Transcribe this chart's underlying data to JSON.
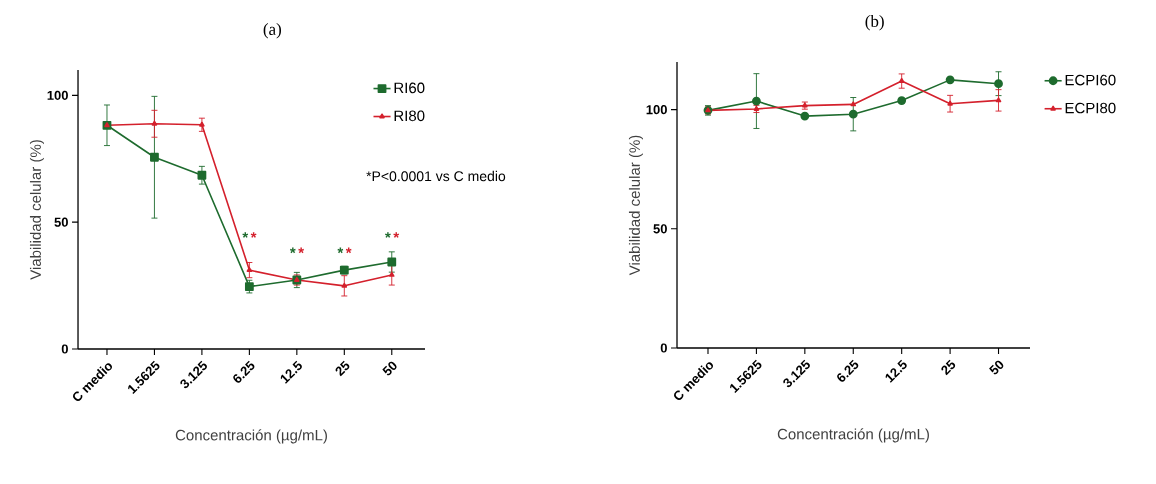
{
  "chart_data": [
    {
      "type": "line",
      "title": "(a)",
      "xlabel": "Concentración (µg/mL)",
      "ylabel": "Viabilidad celular (%)",
      "categories": [
        "C medio",
        "1.5625",
        "3.125",
        "6.25",
        "12.5",
        "25",
        "50"
      ],
      "series": [
        {
          "name": "RI60",
          "color": "#1e6b2e",
          "marker": "square",
          "values": [
            88.2,
            75.6,
            68.5,
            24.6,
            27.2,
            31.1,
            34.3
          ],
          "errors": [
            8,
            24,
            3.5,
            2.5,
            3,
            1.5,
            4
          ]
        },
        {
          "name": "RI80",
          "color": "#d4202c",
          "marker": "triangle",
          "values": [
            88.2,
            88.8,
            88.4,
            31.1,
            27.2,
            24.9,
            29.2
          ],
          "errors": [
            1,
            5.3,
            2.6,
            3,
            2,
            4,
            4
          ]
        }
      ],
      "ylim": [
        0,
        110
      ],
      "yticks": [
        0,
        50,
        100
      ],
      "legend": "top right",
      "line_style": "solid",
      "annotations": [
        "*P<0.0001 vs C medio",
        "*",
        "*",
        "*",
        "*",
        "*",
        "*",
        "*",
        "*"
      ]
    },
    {
      "type": "line",
      "title": "(b)",
      "xlabel": "Concentración (µg/mL)",
      "ylabel": "Viabilidad celular (%)",
      "categories": [
        "C medio",
        "1.5625",
        "3.125",
        "6.25",
        "12.5",
        "25",
        "50"
      ],
      "series": [
        {
          "name": "ECPI60",
          "color": "#1e6b2e",
          "marker": "circle",
          "values": [
            99.7,
            103.6,
            97.3,
            98.1,
            103.8,
            112.5,
            110.9
          ],
          "errors": [
            2,
            11.5,
            1,
            7,
            1,
            1,
            5
          ]
        },
        {
          "name": "ECPI80",
          "color": "#d4202c",
          "marker": "triangle",
          "values": [
            99.7,
            100.3,
            101.7,
            102.2,
            112,
            102.5,
            103.9
          ],
          "errors": [
            1.5,
            1.5,
            1.5,
            null,
            3,
            3.5,
            4.5
          ]
        }
      ],
      "ylim": [
        0,
        120
      ],
      "yticks": [
        0,
        50,
        100
      ],
      "legend": "right",
      "line_style": "solid"
    }
  ]
}
